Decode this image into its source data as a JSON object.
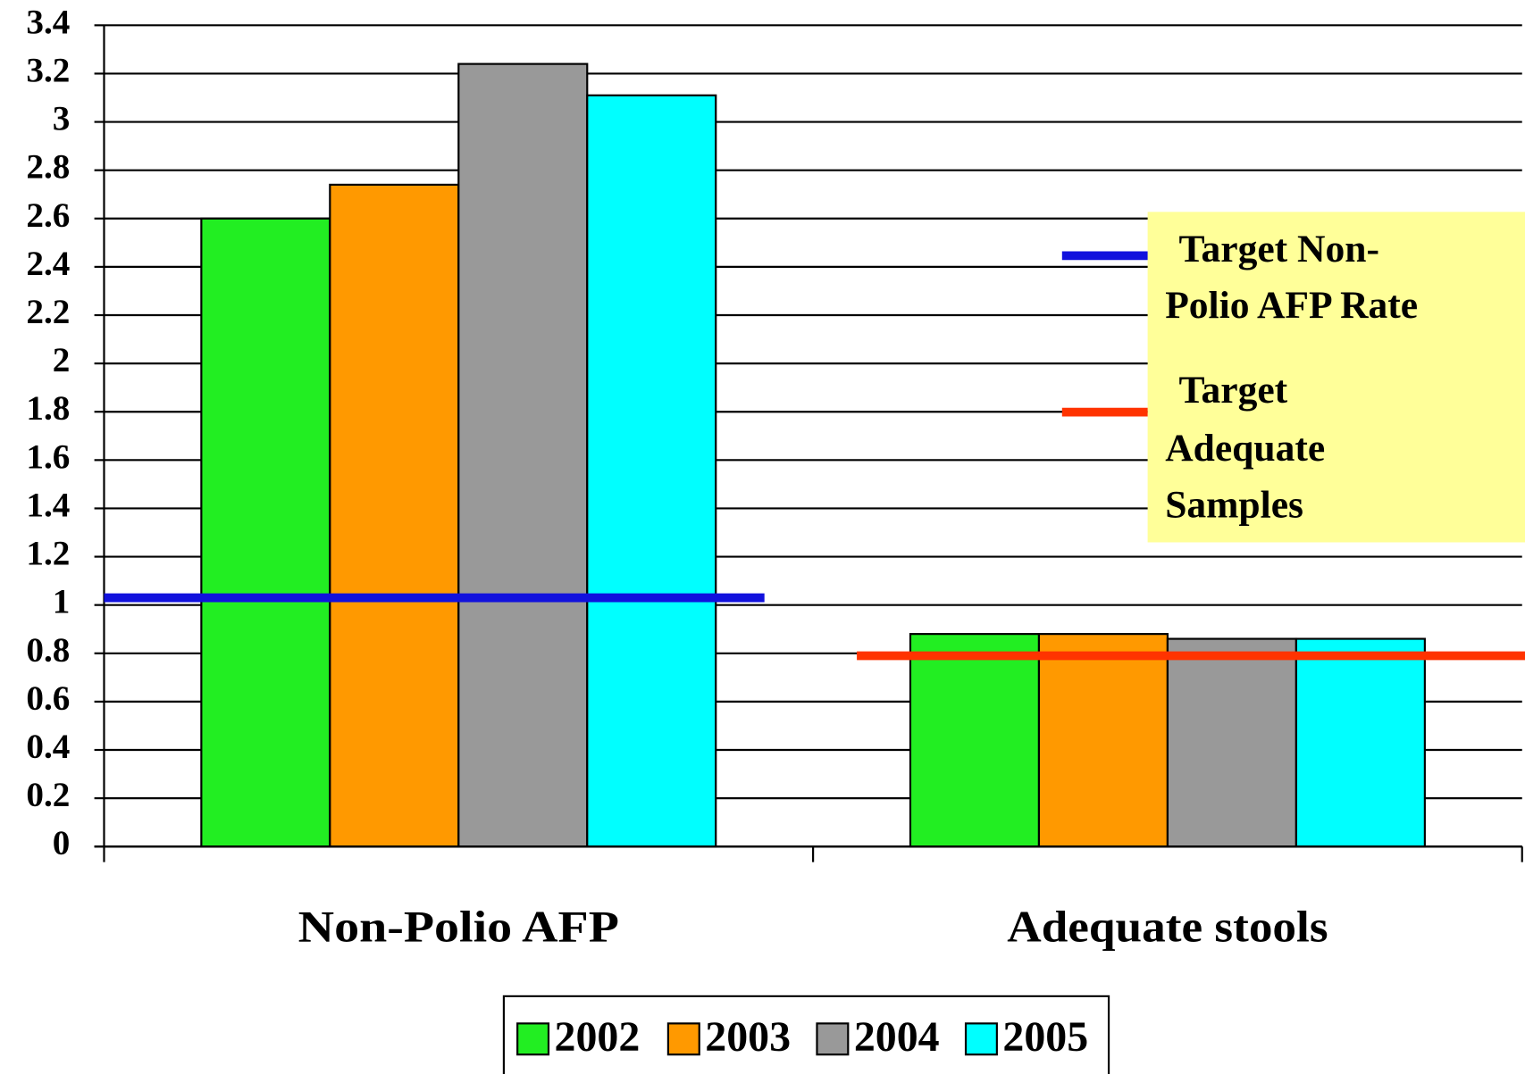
{
  "chart_data": {
    "type": "bar",
    "categories": [
      "Non-Polio AFP",
      "Adequate stools"
    ],
    "series": [
      {
        "name": "2002",
        "color": "#22ee22",
        "values": [
          2.6,
          0.88
        ]
      },
      {
        "name": "2003",
        "color": "#ff9900",
        "values": [
          2.74,
          0.88
        ]
      },
      {
        "name": "2004",
        "color": "#999999",
        "values": [
          3.24,
          0.86
        ]
      },
      {
        "name": "2005",
        "color": "#00ffff",
        "values": [
          3.11,
          0.86
        ]
      }
    ],
    "reference_lines": [
      {
        "label_lines": [
          "Target Non-",
          "Polio AFP Rate"
        ],
        "color": "#1111dd",
        "value": 1.03
      },
      {
        "label_lines": [
          "Target",
          "Adequate",
          "Samples"
        ],
        "color": "#ff3300",
        "value": 0.79
      }
    ],
    "ylim": [
      0,
      3.4
    ],
    "yticks": [
      0,
      0.2,
      0.4,
      0.6,
      0.8,
      1,
      1.2,
      1.4,
      1.6,
      1.8,
      2,
      2.2,
      2.4,
      2.6,
      2.8,
      3,
      3.2,
      3.4
    ],
    "grid": true,
    "legend": "bottom"
  }
}
